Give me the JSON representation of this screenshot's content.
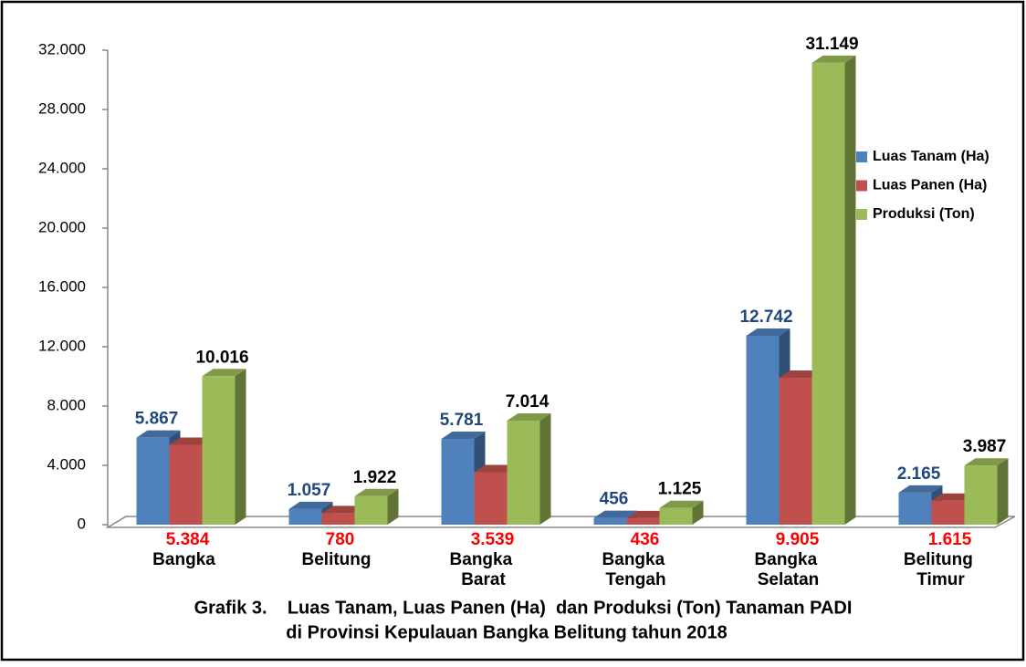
{
  "chart_data": {
    "type": "bar3d",
    "title_lines": [
      "Grafik 3.    Luas Tanam, Luas Panen (Ha)  dan Produksi (Ton) Tanaman PADI",
      "di Provinsi Kepulauan Bangka Belitung tahun 2018"
    ],
    "categories": [
      "Bangka",
      "Belitung",
      "Bangka Barat",
      "Bangka Tengah",
      "Bangka Selatan",
      "Belitung Timur"
    ],
    "series": [
      {
        "name": "Luas Tanam (Ha)",
        "color": "#4f81bd",
        "label_color": "#1f497d",
        "label_position": "above",
        "values": [
          5867,
          1057,
          5781,
          456,
          12742,
          2165
        ],
        "value_labels": [
          "5.867",
          "1.057",
          "5.781",
          "456",
          "12.742",
          "2.165"
        ]
      },
      {
        "name": "Luas Panen (Ha)",
        "color": "#c0504d",
        "label_color": "#ff0000",
        "label_position": "below",
        "values": [
          5384,
          780,
          3539,
          436,
          9905,
          1615
        ],
        "value_labels": [
          "5.384",
          "780",
          "3.539",
          "436",
          "9.905",
          "1.615"
        ]
      },
      {
        "name": "Produksi (Ton)",
        "color": "#9bbb59",
        "label_color": "#000000",
        "label_position": "above",
        "values": [
          10016,
          1922,
          7014,
          1125,
          31149,
          3987
        ],
        "value_labels": [
          "10.016",
          "1.922",
          "7.014",
          "1.125",
          "31.149",
          "3.987"
        ]
      }
    ],
    "ylim": [
      0,
      32000
    ],
    "yticks": [
      0,
      {
        "value": 4000,
        "label": "4.000"
      },
      {
        "value": 8000,
        "label": "8.000"
      },
      {
        "value": 12000,
        "label": "12.000"
      },
      {
        "value": 16000,
        "label": "16.000"
      },
      {
        "value": 20000,
        "label": "20.000"
      },
      {
        "value": 24000,
        "label": "24.000"
      },
      {
        "value": 28000,
        "label": "28.000"
      },
      {
        "value": 32000,
        "label": "32.000"
      }
    ],
    "legend": "right"
  }
}
